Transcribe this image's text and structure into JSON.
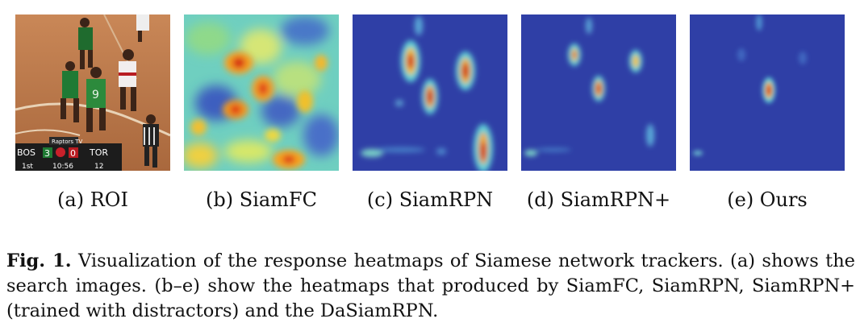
{
  "figure": {
    "panels": [
      {
        "label": "(a) ROI",
        "kind": "photo",
        "scoreboard": {
          "team1": "BOS",
          "score1": "3",
          "score2": "0",
          "team2": "TOR",
          "period": "1st",
          "clock": "10:56",
          "shot": "12",
          "logo": "Raptors TV"
        }
      },
      {
        "label": "(b) SiamFC",
        "kind": "heatmap-dense"
      },
      {
        "label": "(c) SiamRPN",
        "kind": "heatmap-peaks"
      },
      {
        "label": "(d) SiamRPN+",
        "kind": "heatmap-fewer"
      },
      {
        "label": "(e) Ours",
        "kind": "heatmap-single"
      }
    ],
    "colors": {
      "heat_low": "#2b3fa8",
      "heat_mid": "#7fd6c9",
      "heat_high": "#d7191c",
      "court": "#b8754a"
    },
    "caption": {
      "label": "Fig. 1.",
      "text": "Visualization of the response heatmaps of Siamese network trackers. (a) shows the search images. (b–e) show the heatmaps that produced by SiamFC, SiamRPN, SiamRPN+ (trained with distractors) and the DaSiamRPN."
    }
  }
}
